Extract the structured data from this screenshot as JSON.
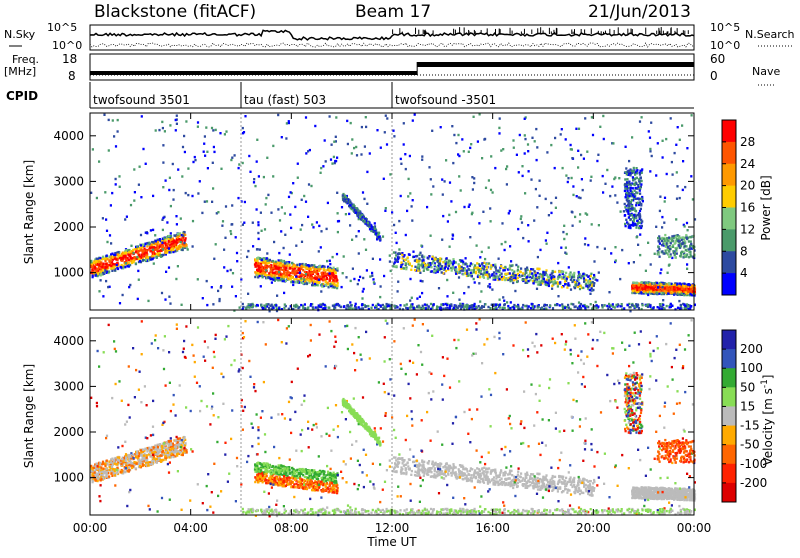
{
  "header": {
    "station": "Blackstone (fitACF)",
    "beam": "Beam 17",
    "date": "21/Jun/2013"
  },
  "top_panels": {
    "nsky_label": "N.Sky",
    "nsearch_label": "N.Search",
    "freq_label": "Freq.",
    "freq_unit": "[MHz]",
    "nave_label": "Nave",
    "cpid_label": "CPID",
    "noise_ticks_left": [
      "10^5",
      "10^0"
    ],
    "noise_ticks_right": [
      "10^5",
      "10^0"
    ],
    "freq_ticks": [
      "18",
      "8"
    ],
    "nave_ticks": [
      "60",
      "0"
    ]
  },
  "cpid_segments": [
    {
      "label": "twofsound 3501",
      "start_hour": 0
    },
    {
      "label": "tau (fast) 503",
      "start_hour": 6
    },
    {
      "label": "twofsound -3501",
      "start_hour": 12
    }
  ],
  "chart_data": [
    {
      "type": "heatmap",
      "name": "power",
      "ylabel": "Slant Range [km]",
      "xlim_hours": [
        0,
        24
      ],
      "ylim_km": [
        180,
        4500
      ],
      "y_ticks": [
        1000,
        2000,
        3000,
        4000
      ],
      "colorbar": {
        "label": "Power [dB]",
        "ticks": [
          "28",
          "24",
          "20",
          "16",
          "12",
          "8",
          "4"
        ],
        "colors": [
          "#ff0000",
          "#ff5500",
          "#ff9900",
          "#ffcc00",
          "#7fc97f",
          "#4a9a6a",
          "#2d4aa0",
          "#0000ff"
        ]
      },
      "regions": [
        {
          "x": [
            0,
            3.8
          ],
          "center_km_start": 1100,
          "center_km_end": 1750,
          "width_km": 400,
          "intensity": "high"
        },
        {
          "x": [
            6.5,
            9.8
          ],
          "center_km_start": 1150,
          "center_km_end": 900,
          "width_km": 450,
          "intensity": "high"
        },
        {
          "x": [
            12,
            20
          ],
          "center_km_start": 1300,
          "center_km_end": 800,
          "width_km": 350,
          "intensity": "low"
        },
        {
          "x": [
            21.5,
            24
          ],
          "center_km_start": 700,
          "center_km_end": 650,
          "width_km": 250,
          "intensity": "high"
        }
      ]
    },
    {
      "type": "heatmap",
      "name": "velocity",
      "ylabel": "Slant Range [km]",
      "xlabel": "Time UT",
      "xlim_hours": [
        0,
        24
      ],
      "ylim_km": [
        180,
        4500
      ],
      "x_ticks": [
        "00:00",
        "04:00",
        "08:00",
        "12:00",
        "16:00",
        "20:00",
        "00:00"
      ],
      "y_ticks": [
        1000,
        2000,
        3000,
        4000
      ],
      "colorbar": {
        "label": "Velocity [m s^-1]",
        "ticks": [
          "200",
          "100",
          "50",
          "15",
          "-15",
          "-50",
          "-100",
          "-200"
        ],
        "colors": [
          "#2222aa",
          "#3355bb",
          "#33aa33",
          "#88dd55",
          "#bbbbbb",
          "#ffaa00",
          "#ff6600",
          "#ff2200",
          "#dd0000"
        ]
      }
    }
  ],
  "xaxis": {
    "labels": [
      "00:00",
      "04:00",
      "08:00",
      "12:00",
      "16:00",
      "20:00",
      "00:00"
    ],
    "title": "Time UT"
  }
}
